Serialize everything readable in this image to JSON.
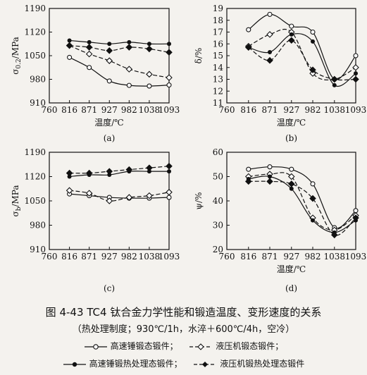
{
  "figure": {
    "title": "图 4-43   TC4 钛合金力学性能和锻造温度、变形速度的关系",
    "conditions": "（热处理制度；930℃/1h，水淬＋600℃/4h，空冷）"
  },
  "legend": [
    {
      "label": "高速锤锻态锻件；",
      "marker": "open-circle",
      "dash": "solid"
    },
    {
      "label": "液压机锻态锻件；",
      "marker": "open-diamond",
      "dash": "dash"
    },
    {
      "label": "高速锤锻热处理态锻件；",
      "marker": "filled-circle",
      "dash": "solid"
    },
    {
      "label": "液压机锻热处理态锻件",
      "marker": "filled-diamond",
      "dash": "dash"
    }
  ],
  "chart_data": [
    {
      "type": "line",
      "panel_label": "(a)",
      "xlabel": "温度/℃",
      "ylabel": "σ0.2/MPa",
      "x_ticks": [
        "760",
        "816",
        "871",
        "927",
        "982",
        "1038",
        "1093"
      ],
      "y_ticks": [
        "910",
        "980",
        "1050",
        "1120",
        "1190"
      ],
      "xlim": [
        760,
        1093
      ],
      "ylim": [
        910,
        1190
      ],
      "series": [
        {
          "marker": "open-circle",
          "points": [
            [
              816,
              1045
            ],
            [
              871,
              1015
            ],
            [
              927,
              975
            ],
            [
              982,
              962
            ],
            [
              1038,
              960
            ],
            [
              1093,
              963
            ]
          ]
        },
        {
          "marker": "open-diamond",
          "points": [
            [
              816,
              1080
            ],
            [
              871,
              1055
            ],
            [
              927,
              1035
            ],
            [
              982,
              1010
            ],
            [
              1038,
              995
            ],
            [
              1093,
              985
            ]
          ]
        },
        {
          "marker": "filled-circle",
          "points": [
            [
              816,
              1095
            ],
            [
              871,
              1090
            ],
            [
              927,
              1085
            ],
            [
              982,
              1090
            ],
            [
              1038,
              1085
            ],
            [
              1093,
              1085
            ]
          ]
        },
        {
          "marker": "filled-diamond",
          "points": [
            [
              816,
              1080
            ],
            [
              871,
              1075
            ],
            [
              927,
              1065
            ],
            [
              982,
              1075
            ],
            [
              1038,
              1070
            ],
            [
              1093,
              1060
            ]
          ]
        }
      ]
    },
    {
      "type": "line",
      "panel_label": "(b)",
      "xlabel": "温度/℃",
      "ylabel": "δ/%",
      "x_ticks": [
        "760",
        "816",
        "871",
        "927",
        "982",
        "1038",
        "1093"
      ],
      "y_ticks": [
        "11",
        "12",
        "13",
        "14",
        "15",
        "16",
        "17",
        "18",
        "19"
      ],
      "xlim": [
        760,
        1093
      ],
      "ylim": [
        11,
        19
      ],
      "series": [
        {
          "marker": "open-circle",
          "points": [
            [
              816,
              17.2
            ],
            [
              871,
              18.5
            ],
            [
              927,
              17.5
            ],
            [
              982,
              17.0
            ],
            [
              1038,
              13.0
            ],
            [
              1093,
              15.0
            ]
          ]
        },
        {
          "marker": "open-diamond",
          "points": [
            [
              816,
              15.8
            ],
            [
              871,
              16.8
            ],
            [
              927,
              17.0
            ],
            [
              982,
              13.5
            ],
            [
              1038,
              13.0
            ],
            [
              1093,
              14.0
            ]
          ]
        },
        {
          "marker": "filled-circle",
          "points": [
            [
              816,
              15.7
            ],
            [
              871,
              15.3
            ],
            [
              927,
              16.8
            ],
            [
              982,
              16.2
            ],
            [
              1038,
              12.5
            ],
            [
              1093,
              13.5
            ]
          ]
        },
        {
          "marker": "filled-diamond",
          "points": [
            [
              816,
              15.7
            ],
            [
              871,
              14.6
            ],
            [
              927,
              16.3
            ],
            [
              982,
              13.8
            ],
            [
              1038,
              13.0
            ],
            [
              1093,
              13.0
            ]
          ]
        }
      ]
    },
    {
      "type": "line",
      "panel_label": "(c)",
      "xlabel": "",
      "ylabel": "σb/MPa",
      "x_ticks": [
        "760",
        "816",
        "871",
        "927",
        "982",
        "1038",
        "1093"
      ],
      "y_ticks": [
        "910",
        "980",
        "1050",
        "1120",
        "1190"
      ],
      "xlim": [
        760,
        1093
      ],
      "ylim": [
        910,
        1190
      ],
      "series": [
        {
          "marker": "open-circle",
          "points": [
            [
              816,
              1070
            ],
            [
              871,
              1065
            ],
            [
              927,
              1060
            ],
            [
              982,
              1058
            ],
            [
              1038,
              1058
            ],
            [
              1093,
              1060
            ]
          ]
        },
        {
          "marker": "open-diamond",
          "points": [
            [
              816,
              1080
            ],
            [
              871,
              1072
            ],
            [
              927,
              1050
            ],
            [
              982,
              1060
            ],
            [
              1038,
              1065
            ],
            [
              1093,
              1075
            ]
          ]
        },
        {
          "marker": "filled-circle",
          "points": [
            [
              816,
              1120
            ],
            [
              871,
              1125
            ],
            [
              927,
              1125
            ],
            [
              982,
              1135
            ],
            [
              1038,
              1135
            ],
            [
              1093,
              1135
            ]
          ]
        },
        {
          "marker": "filled-diamond",
          "points": [
            [
              816,
              1130
            ],
            [
              871,
              1130
            ],
            [
              927,
              1135
            ],
            [
              982,
              1140
            ],
            [
              1038,
              1145
            ],
            [
              1093,
              1150
            ]
          ]
        }
      ]
    },
    {
      "type": "line",
      "panel_label": "(d)",
      "xlabel": "温度/℃",
      "ylabel": "ψ/%",
      "x_ticks": [
        "760",
        "816",
        "871",
        "927",
        "982",
        "1038",
        "1093"
      ],
      "y_ticks": [
        "20",
        "30",
        "40",
        "50",
        "60"
      ],
      "xlim": [
        760,
        1093
      ],
      "ylim": [
        20,
        60
      ],
      "series": [
        {
          "marker": "open-circle",
          "points": [
            [
              816,
              53
            ],
            [
              871,
              54
            ],
            [
              927,
              53
            ],
            [
              982,
              47
            ],
            [
              1038,
              29
            ],
            [
              1093,
              36
            ]
          ]
        },
        {
          "marker": "open-diamond",
          "points": [
            [
              816,
              50
            ],
            [
              871,
              51
            ],
            [
              927,
              50
            ],
            [
              982,
              33
            ],
            [
              1038,
              28
            ],
            [
              1093,
              34
            ]
          ]
        },
        {
          "marker": "filled-circle",
          "points": [
            [
              816,
              49
            ],
            [
              871,
              50
            ],
            [
              927,
              45
            ],
            [
              982,
              32
            ],
            [
              1038,
              27
            ],
            [
              1093,
              32
            ]
          ]
        },
        {
          "marker": "filled-diamond",
          "points": [
            [
              816,
              48
            ],
            [
              871,
              48
            ],
            [
              927,
              47
            ],
            [
              982,
              41
            ],
            [
              1038,
              26
            ],
            [
              1093,
              33
            ]
          ]
        }
      ]
    }
  ]
}
